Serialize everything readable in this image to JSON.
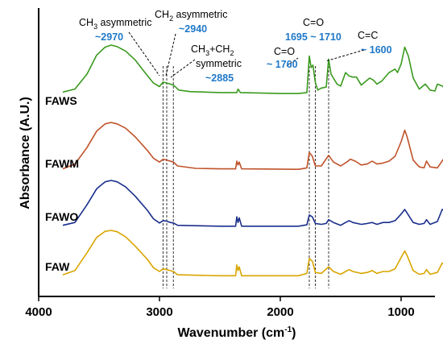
{
  "chart_data": {
    "type": "line",
    "xlabel": "Wavenumber (cm-1)",
    "xlabel_main": "Wavenumber (cm",
    "xlabel_sup": "-1",
    "xlabel_close": ")",
    "ylabel": "Absorbance (A.U.)",
    "xlim": [
      4000,
      600
    ],
    "x_reversed": true,
    "xticks": [
      4000,
      3000,
      2000,
      1000
    ],
    "xtick_labels": [
      "4000",
      "3000",
      "2000",
      "1000"
    ],
    "yticks_shown": false,
    "grid": false,
    "series": [
      {
        "name": "FAWS",
        "color": "#3a9a1e",
        "points": [
          [
            3800,
            0.06
          ],
          [
            3700,
            0.12
          ],
          [
            3600,
            0.42
          ],
          [
            3520,
            0.8
          ],
          [
            3450,
            0.96
          ],
          [
            3400,
            1.0
          ],
          [
            3350,
            0.97
          ],
          [
            3280,
            0.88
          ],
          [
            3200,
            0.7
          ],
          [
            3120,
            0.45
          ],
          [
            3050,
            0.24
          ],
          [
            3000,
            0.17
          ],
          [
            2970,
            0.26
          ],
          [
            2940,
            0.24
          ],
          [
            2910,
            0.22
          ],
          [
            2885,
            0.2
          ],
          [
            2840,
            0.1
          ],
          [
            2750,
            0.07
          ],
          [
            2500,
            0.05
          ],
          [
            2360,
            0.05
          ],
          [
            2350,
            0.12
          ],
          [
            2330,
            0.05
          ],
          [
            2000,
            0.03
          ],
          [
            1850,
            0.03
          ],
          [
            1780,
            0.05
          ],
          [
            1760,
            0.78
          ],
          [
            1745,
            0.55
          ],
          [
            1730,
            0.6
          ],
          [
            1710,
            0.25
          ],
          [
            1690,
            0.1
          ],
          [
            1660,
            0.14
          ],
          [
            1620,
            0.16
          ],
          [
            1600,
            0.72
          ],
          [
            1580,
            0.42
          ],
          [
            1530,
            0.22
          ],
          [
            1500,
            0.18
          ],
          [
            1460,
            0.45
          ],
          [
            1430,
            0.38
          ],
          [
            1400,
            0.36
          ],
          [
            1370,
            0.36
          ],
          [
            1330,
            0.2
          ],
          [
            1300,
            0.26
          ],
          [
            1260,
            0.34
          ],
          [
            1230,
            0.3
          ],
          [
            1200,
            0.22
          ],
          [
            1160,
            0.28
          ],
          [
            1100,
            0.45
          ],
          [
            1050,
            0.52
          ],
          [
            1030,
            0.45
          ],
          [
            1000,
            0.62
          ],
          [
            970,
            0.96
          ],
          [
            940,
            0.78
          ],
          [
            900,
            0.34
          ],
          [
            850,
            0.12
          ],
          [
            800,
            0.22
          ],
          [
            760,
            0.1
          ],
          [
            720,
            0.08
          ],
          [
            700,
            0.22
          ],
          [
            660,
            0.18
          ],
          [
            600,
            0.05
          ]
        ]
      },
      {
        "name": "FAWM",
        "color": "#c0522a",
        "points": [
          [
            3800,
            0.04
          ],
          [
            3700,
            0.14
          ],
          [
            3600,
            0.48
          ],
          [
            3520,
            0.82
          ],
          [
            3450,
            0.97
          ],
          [
            3400,
            1.0
          ],
          [
            3350,
            0.97
          ],
          [
            3280,
            0.88
          ],
          [
            3200,
            0.7
          ],
          [
            3100,
            0.42
          ],
          [
            3050,
            0.26
          ],
          [
            3000,
            0.18
          ],
          [
            2970,
            0.24
          ],
          [
            2940,
            0.22
          ],
          [
            2910,
            0.2
          ],
          [
            2885,
            0.18
          ],
          [
            2850,
            0.1
          ],
          [
            2700,
            0.05
          ],
          [
            2500,
            0.04
          ],
          [
            2370,
            0.04
          ],
          [
            2360,
            0.2
          ],
          [
            2350,
            0.12
          ],
          [
            2340,
            0.18
          ],
          [
            2320,
            0.04
          ],
          [
            1850,
            0.03
          ],
          [
            1780,
            0.06
          ],
          [
            1760,
            0.38
          ],
          [
            1735,
            0.3
          ],
          [
            1710,
            0.1
          ],
          [
            1660,
            0.1
          ],
          [
            1600,
            0.32
          ],
          [
            1560,
            0.18
          ],
          [
            1500,
            0.1
          ],
          [
            1450,
            0.18
          ],
          [
            1420,
            0.24
          ],
          [
            1380,
            0.2
          ],
          [
            1330,
            0.12
          ],
          [
            1280,
            0.14
          ],
          [
            1240,
            0.2
          ],
          [
            1200,
            0.14
          ],
          [
            1150,
            0.16
          ],
          [
            1100,
            0.2
          ],
          [
            1050,
            0.3
          ],
          [
            1000,
            0.6
          ],
          [
            970,
            0.84
          ],
          [
            950,
            0.7
          ],
          [
            900,
            0.22
          ],
          [
            850,
            0.08
          ],
          [
            810,
            0.06
          ],
          [
            790,
            0.2
          ],
          [
            760,
            0.08
          ],
          [
            700,
            0.06
          ],
          [
            650,
            0.24
          ],
          [
            620,
            0.18
          ],
          [
            600,
            0.08
          ]
        ]
      },
      {
        "name": "FAWO",
        "color": "#1a2e8c",
        "points": [
          [
            3800,
            0.04
          ],
          [
            3700,
            0.1
          ],
          [
            3600,
            0.48
          ],
          [
            3520,
            0.82
          ],
          [
            3450,
            0.97
          ],
          [
            3400,
            1.0
          ],
          [
            3350,
            0.97
          ],
          [
            3280,
            0.86
          ],
          [
            3200,
            0.66
          ],
          [
            3100,
            0.36
          ],
          [
            3050,
            0.18
          ],
          [
            3000,
            0.09
          ],
          [
            2970,
            0.14
          ],
          [
            2940,
            0.13
          ],
          [
            2910,
            0.1
          ],
          [
            2885,
            0.09
          ],
          [
            2850,
            0.04
          ],
          [
            2500,
            0.02
          ],
          [
            2370,
            0.02
          ],
          [
            2360,
            0.22
          ],
          [
            2350,
            0.1
          ],
          [
            2340,
            0.2
          ],
          [
            2320,
            0.02
          ],
          [
            1850,
            0.02
          ],
          [
            1780,
            0.05
          ],
          [
            1760,
            0.26
          ],
          [
            1735,
            0.22
          ],
          [
            1710,
            0.08
          ],
          [
            1660,
            0.06
          ],
          [
            1620,
            0.08
          ],
          [
            1600,
            0.16
          ],
          [
            1560,
            0.1
          ],
          [
            1500,
            0.04
          ],
          [
            1460,
            0.1
          ],
          [
            1430,
            0.14
          ],
          [
            1400,
            0.1
          ],
          [
            1330,
            0.06
          ],
          [
            1280,
            0.08
          ],
          [
            1240,
            0.1
          ],
          [
            1200,
            0.06
          ],
          [
            1150,
            0.1
          ],
          [
            1100,
            0.1
          ],
          [
            1050,
            0.14
          ],
          [
            1000,
            0.28
          ],
          [
            970,
            0.38
          ],
          [
            950,
            0.3
          ],
          [
            900,
            0.1
          ],
          [
            850,
            0.06
          ],
          [
            810,
            0.08
          ],
          [
            790,
            0.16
          ],
          [
            760,
            0.06
          ],
          [
            700,
            0.12
          ],
          [
            660,
            0.38
          ],
          [
            630,
            0.34
          ],
          [
            600,
            0.2
          ]
        ]
      },
      {
        "name": "FAW",
        "color": "#d9a500",
        "points": [
          [
            3800,
            0.05
          ],
          [
            3700,
            0.14
          ],
          [
            3600,
            0.52
          ],
          [
            3520,
            0.85
          ],
          [
            3450,
            0.98
          ],
          [
            3400,
            1.0
          ],
          [
            3350,
            0.97
          ],
          [
            3280,
            0.86
          ],
          [
            3200,
            0.66
          ],
          [
            3100,
            0.38
          ],
          [
            3050,
            0.2
          ],
          [
            3000,
            0.12
          ],
          [
            2970,
            0.18
          ],
          [
            2940,
            0.16
          ],
          [
            2910,
            0.14
          ],
          [
            2885,
            0.12
          ],
          [
            2850,
            0.05
          ],
          [
            2500,
            0.03
          ],
          [
            2370,
            0.03
          ],
          [
            2360,
            0.26
          ],
          [
            2350,
            0.14
          ],
          [
            2340,
            0.22
          ],
          [
            2320,
            0.03
          ],
          [
            1850,
            0.03
          ],
          [
            1780,
            0.08
          ],
          [
            1760,
            0.4
          ],
          [
            1735,
            0.34
          ],
          [
            1710,
            0.1
          ],
          [
            1660,
            0.08
          ],
          [
            1600,
            0.22
          ],
          [
            1560,
            0.12
          ],
          [
            1500,
            0.06
          ],
          [
            1460,
            0.12
          ],
          [
            1430,
            0.16
          ],
          [
            1400,
            0.12
          ],
          [
            1330,
            0.08
          ],
          [
            1280,
            0.1
          ],
          [
            1240,
            0.14
          ],
          [
            1200,
            0.08
          ],
          [
            1150,
            0.12
          ],
          [
            1100,
            0.12
          ],
          [
            1050,
            0.18
          ],
          [
            1000,
            0.42
          ],
          [
            970,
            0.56
          ],
          [
            950,
            0.46
          ],
          [
            900,
            0.14
          ],
          [
            850,
            0.06
          ],
          [
            810,
            0.08
          ],
          [
            790,
            0.16
          ],
          [
            760,
            0.06
          ],
          [
            700,
            0.1
          ],
          [
            660,
            0.3
          ],
          [
            630,
            0.26
          ],
          [
            600,
            0.14
          ]
        ]
      }
    ],
    "reference_lines": [
      {
        "wavenumber": 2970
      },
      {
        "wavenumber": 2940
      },
      {
        "wavenumber": 2885
      },
      {
        "wavenumber": 1760
      },
      {
        "wavenumber": 1710
      },
      {
        "wavenumber": 1600
      }
    ],
    "annotations": {
      "ch3_asym_main": "CH",
      "ch3_asym_sub": "3",
      "ch3_asym_rest": " asymmetric",
      "ch3_asym_value": "~2970",
      "ch2_asym_main": "CH",
      "ch2_asym_sub": "2",
      "ch2_asym_rest": " asymmetric",
      "ch2_asym_value": "~2940",
      "ch3ch2_line1_a": "CH",
      "ch3ch2_line1_sub1": "3",
      "ch3ch2_line1_b": "+CH",
      "ch3ch2_line1_sub2": "2",
      "ch3ch2_line2": "symmetric",
      "ch3ch2_value": "~2885",
      "co_left_label": "C=O",
      "co_left_value": "~ 1760",
      "co_top_label": "C=O",
      "co_top_value": "1695 ~ 1710",
      "cc_label": "C=C",
      "cc_value": "~ 1600"
    }
  }
}
